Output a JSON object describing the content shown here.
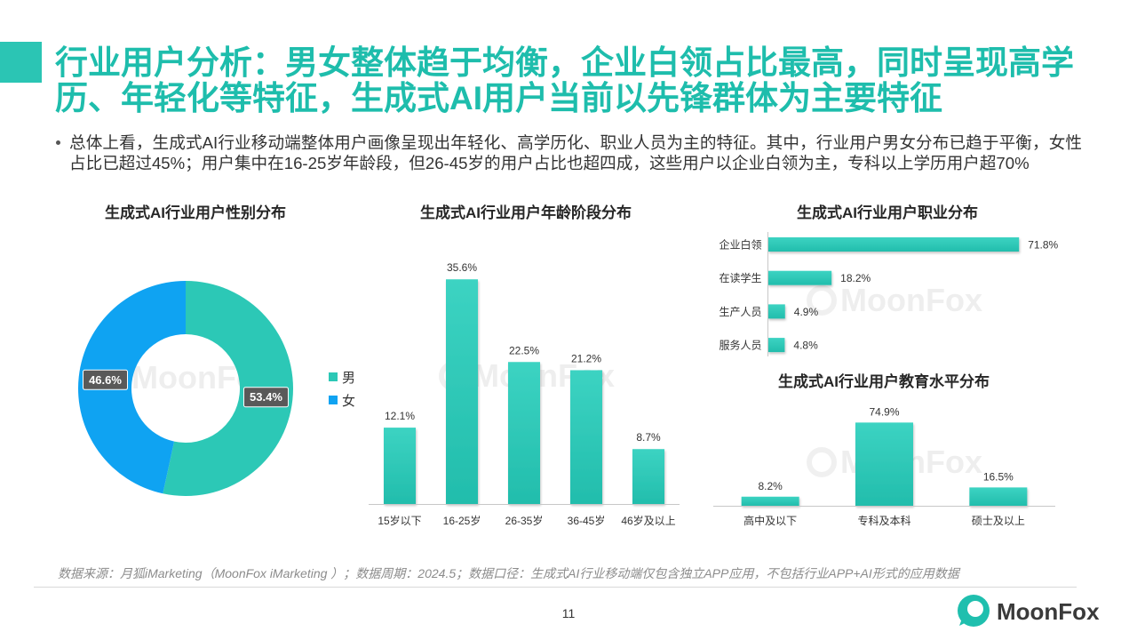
{
  "colors": {
    "accent": "#1EBDAC",
    "bar_top": "#3CD3C2",
    "bar_bottom": "#22BDAC",
    "label_box": "#595959",
    "text": "#333333",
    "muted_text": "#8C8C8C",
    "axis": "#C8C8C8"
  },
  "header": {
    "title": "行业用户分析：男女整体趋于均衡，企业白领占比最高，同时呈现高学历、年轻化等特征，生成式AI用户当前以先锋群体为主要特征",
    "bullet": "总体上看，生成式AI行业移动端整体用户画像呈现出年轻化、高学历化、职业人员为主的特征。其中，行业用户男女分布已趋于平衡，女性占比已超过45%；用户集中在16-25岁年龄段，但26-45岁的用户占比也超四成，这些用户以企业白领为主，专科以上学历用户超70%"
  },
  "chart_data": [
    {
      "type": "pie",
      "donut": true,
      "title": "生成式AI行业用户性别分布",
      "categories": [
        "男",
        "女"
      ],
      "values": [
        53.4,
        46.6
      ],
      "unit": "%",
      "colors": [
        "#2CC8B6",
        "#0FA3F2"
      ],
      "legend": "right",
      "grid": false
    },
    {
      "type": "bar",
      "title": "生成式AI行业用户年龄阶段分布",
      "categories": [
        "15岁以下",
        "16-25岁",
        "26-35岁",
        "36-45岁",
        "46岁及以上"
      ],
      "values": [
        12.1,
        35.6,
        22.5,
        21.2,
        8.7
      ],
      "unit": "%",
      "ylim": [
        0,
        40
      ],
      "grid": false
    },
    {
      "type": "bar",
      "orientation": "horizontal",
      "title": "生成式AI行业用户职业分布",
      "categories": [
        "企业白领",
        "在读学生",
        "生产人员",
        "服务人员"
      ],
      "values": [
        71.8,
        18.2,
        4.9,
        4.8
      ],
      "unit": "%",
      "xlim": [
        0,
        80
      ],
      "grid": false
    },
    {
      "type": "bar",
      "title": "生成式AI行业用户教育水平分布",
      "categories": [
        "高中及以下",
        "专科及本科",
        "硕士及以上"
      ],
      "values": [
        8.2,
        74.9,
        16.5
      ],
      "unit": "%",
      "ylim": [
        0,
        100
      ],
      "grid": false
    }
  ],
  "footer": {
    "source": "数据来源：月狐iMarketing（MoonFox iMarketing ）；数据周期：2024.5；数据口径：生成式AI行业移动端仅包含独立APP应用，不包括行业APP+AI形式的应用数据",
    "page_number": "11"
  },
  "brand": {
    "logo_text": "MoonFox",
    "watermark": "MoonFox"
  }
}
